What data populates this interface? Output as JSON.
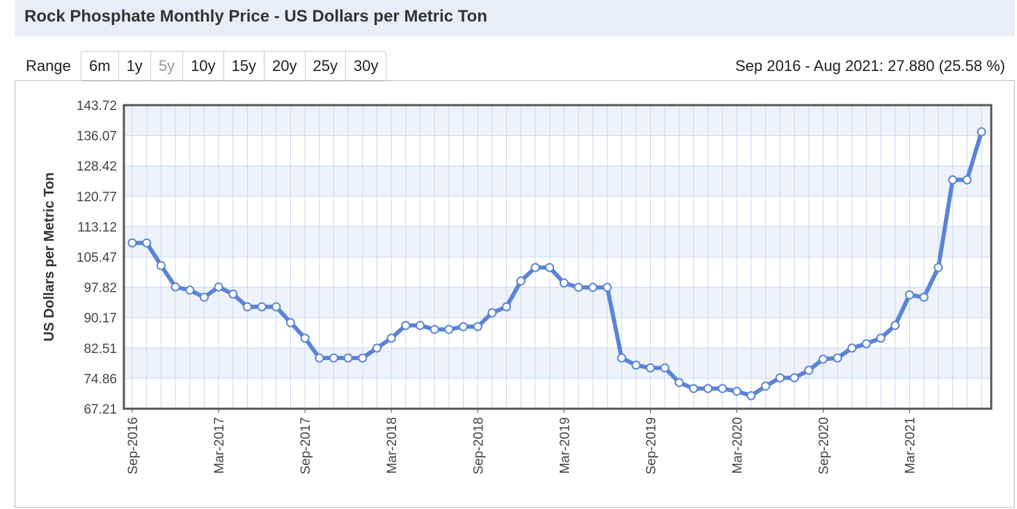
{
  "title": "Rock Phosphate Monthly Price - US Dollars per Metric Ton",
  "range": {
    "label": "Range",
    "buttons": [
      {
        "label": "6m",
        "disabled": false
      },
      {
        "label": "1y",
        "disabled": false
      },
      {
        "label": "5y",
        "disabled": true
      },
      {
        "label": "10y",
        "disabled": false
      },
      {
        "label": "15y",
        "disabled": false
      },
      {
        "label": "20y",
        "disabled": false
      },
      {
        "label": "25y",
        "disabled": false
      },
      {
        "label": "30y",
        "disabled": false
      }
    ]
  },
  "summary": "Sep 2016 - Aug 2021: 27.880 (25.58 %)",
  "colors": {
    "line": "#5b84d6",
    "band": "#eef2fb",
    "grid": "#c9d6ef",
    "frame": "#555555"
  },
  "chart_data": {
    "type": "line",
    "title": "Rock Phosphate Monthly Price - US Dollars per Metric Ton",
    "xlabel": "",
    "ylabel": "US Dollars per Metric Ton",
    "ylim": [
      67.21,
      143.72
    ],
    "yticks": [
      "143.72",
      "136.07",
      "128.42",
      "120.77",
      "113.12",
      "105.47",
      "97.82",
      "90.17",
      "82.51",
      "74.86",
      "67.21"
    ],
    "xtick_labels": [
      {
        "index": 0,
        "label": "Sep-2016"
      },
      {
        "index": 6,
        "label": "Mar-2017"
      },
      {
        "index": 12,
        "label": "Sep-2017"
      },
      {
        "index": 18,
        "label": "Mar-2018"
      },
      {
        "index": 24,
        "label": "Sep-2018"
      },
      {
        "index": 30,
        "label": "Mar-2019"
      },
      {
        "index": 36,
        "label": "Sep-2019"
      },
      {
        "index": 42,
        "label": "Mar-2020"
      },
      {
        "index": 48,
        "label": "Sep-2020"
      },
      {
        "index": 54,
        "label": "Mar-2021"
      }
    ],
    "grid": true,
    "x": [
      "Sep-2016",
      "Oct-2016",
      "Nov-2016",
      "Dec-2016",
      "Jan-2017",
      "Feb-2017",
      "Mar-2017",
      "Apr-2017",
      "May-2017",
      "Jun-2017",
      "Jul-2017",
      "Aug-2017",
      "Sep-2017",
      "Oct-2017",
      "Nov-2017",
      "Dec-2017",
      "Jan-2018",
      "Feb-2018",
      "Mar-2018",
      "Apr-2018",
      "May-2018",
      "Jun-2018",
      "Jul-2018",
      "Aug-2018",
      "Sep-2018",
      "Oct-2018",
      "Nov-2018",
      "Dec-2018",
      "Jan-2019",
      "Feb-2019",
      "Mar-2019",
      "Apr-2019",
      "May-2019",
      "Jun-2019",
      "Jul-2019",
      "Aug-2019",
      "Sep-2019",
      "Oct-2019",
      "Nov-2019",
      "Dec-2019",
      "Jan-2020",
      "Feb-2020",
      "Mar-2020",
      "Apr-2020",
      "May-2020",
      "Jun-2020",
      "Jul-2020",
      "Aug-2020",
      "Sep-2020",
      "Oct-2020",
      "Nov-2020",
      "Dec-2020",
      "Jan-2021",
      "Feb-2021",
      "Mar-2021",
      "Apr-2021",
      "May-2021",
      "Jun-2021",
      "Jul-2021",
      "Aug-2021"
    ],
    "series": [
      {
        "values": [
          109.0,
          109.0,
          103.3,
          97.9,
          97.1,
          95.3,
          97.9,
          96.1,
          92.9,
          92.9,
          92.9,
          88.9,
          85.0,
          80.0,
          80.0,
          80.0,
          80.0,
          82.5,
          85.0,
          88.2,
          88.2,
          87.2,
          87.2,
          87.9,
          87.9,
          91.4,
          92.9,
          99.4,
          102.8,
          102.8,
          98.9,
          97.8,
          97.8,
          97.8,
          80.0,
          78.2,
          77.5,
          77.5,
          73.8,
          72.3,
          72.3,
          72.3,
          71.6,
          70.5,
          72.9,
          75.0,
          75.0,
          76.9,
          79.7,
          80.0,
          82.5,
          83.6,
          85.0,
          88.2,
          95.9,
          95.3,
          102.8,
          124.9,
          124.9,
          137.0
        ]
      }
    ]
  }
}
